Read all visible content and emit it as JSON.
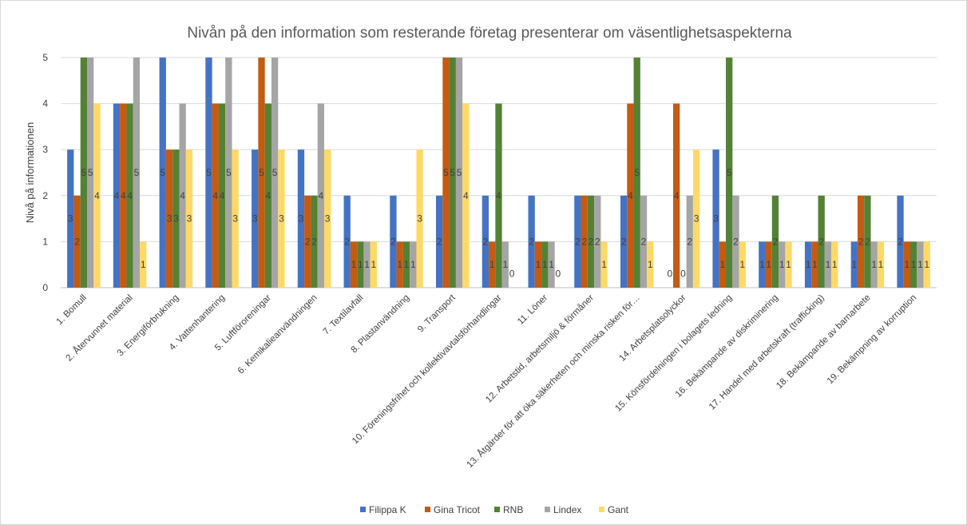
{
  "chart_data": {
    "type": "bar",
    "title": "Nivån på den information som resterande företag presenterar om väsentlighetsaspekterna",
    "xlabel": "",
    "ylabel": "Nivå på informationen",
    "ylim": [
      0,
      5
    ],
    "yticks": [
      0,
      1,
      2,
      3,
      4,
      5
    ],
    "grid": true,
    "legend_position": "bottom",
    "categories": [
      "1. Bomull",
      "2. Återvunnet material",
      "3. Energiförbrukning",
      "4. Vattenhantering",
      "5. Luftföroreningar",
      "6. Kemikalieanvändningen",
      "7. Textilavfall",
      "8. Plastanvändning",
      "9. Transport",
      "10. Föreningsfrihet och kollektivavtalsförhandlingar",
      "11. Löner",
      "12. Arbetstid, arbetsmiljö & förmåner",
      "13. Åtgärder för att öka säkerheten och minska risken för…",
      "14. Arbetsplatsolyckor",
      "15. Könsfördelningen i bolagets ledning",
      "16. Bekämpande av diskriminering",
      "17. Handel med arbetskraft (trafficking)",
      "18. Bekämpande av barnarbete",
      "19. Bekämpning av korruption"
    ],
    "series": [
      {
        "name": "Filippa K",
        "color": "#4472C4",
        "values": [
          3,
          4,
          5,
          5,
          3,
          3,
          2,
          2,
          2,
          2,
          2,
          2,
          2,
          0,
          3,
          1,
          1,
          1,
          2
        ]
      },
      {
        "name": "Gina Tricot",
        "color": "#C55A11",
        "values": [
          2,
          4,
          3,
          4,
          5,
          2,
          1,
          1,
          5,
          1,
          1,
          2,
          4,
          4,
          1,
          1,
          1,
          2,
          1
        ]
      },
      {
        "name": "RNB",
        "color": "#548235",
        "values": [
          5,
          4,
          3,
          4,
          4,
          2,
          1,
          1,
          5,
          4,
          1,
          2,
          5,
          0,
          5,
          2,
          2,
          2,
          1
        ]
      },
      {
        "name": "Lindex",
        "color": "#A5A5A5",
        "values": [
          5,
          5,
          4,
          5,
          5,
          4,
          1,
          1,
          5,
          1,
          1,
          2,
          2,
          2,
          2,
          1,
          1,
          1,
          1
        ]
      },
      {
        "name": "Gant",
        "color": "#FFD966",
        "values": [
          4,
          1,
          3,
          3,
          3,
          3,
          1,
          3,
          4,
          0,
          0,
          1,
          1,
          3,
          1,
          1,
          1,
          1,
          1
        ]
      }
    ]
  }
}
